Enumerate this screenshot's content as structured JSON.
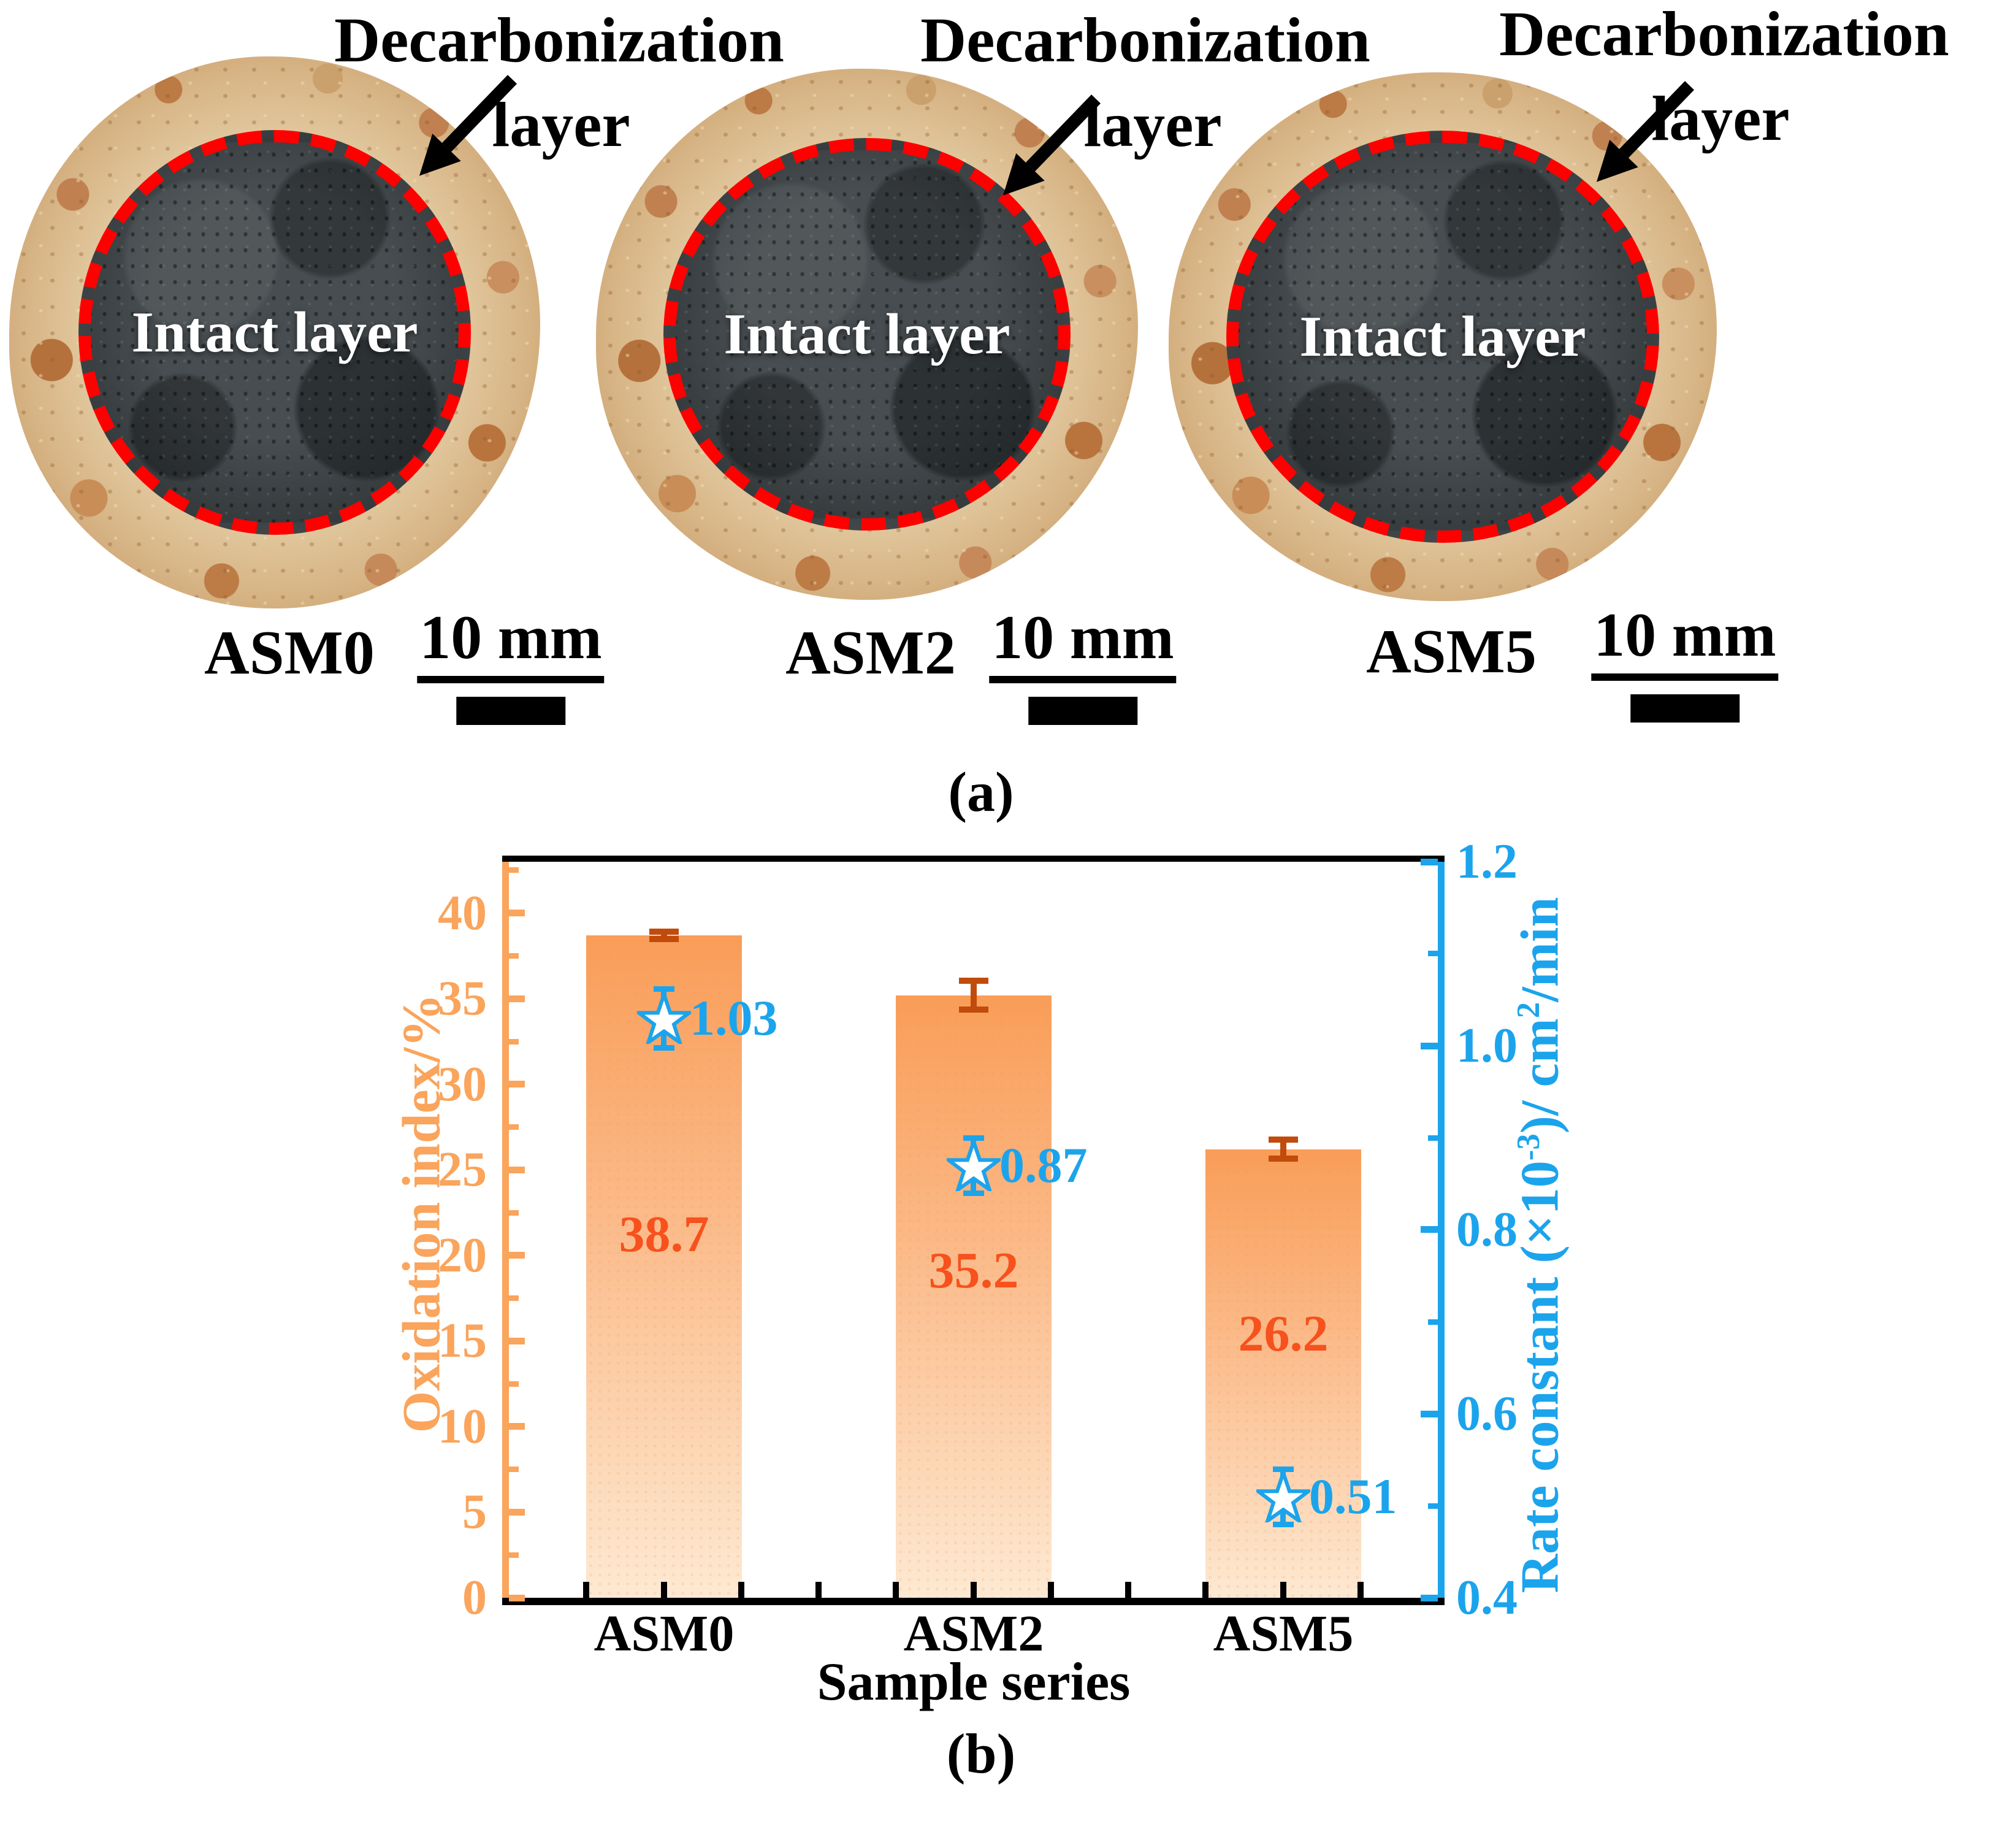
{
  "panel_a": {
    "label": "(a)",
    "samples": [
      {
        "name": "ASM0",
        "scale_label": "10 mm",
        "annotation_line1": "Decarbonization",
        "annotation_line2": "layer",
        "intact_label": "Intact layer"
      },
      {
        "name": "ASM2",
        "scale_label": "10 mm",
        "annotation_line1": "Decarbonization",
        "annotation_line2": "layer",
        "intact_label": "Intact layer"
      },
      {
        "name": "ASM5",
        "scale_label": "10 mm",
        "annotation_line1": "Decarbonization",
        "annotation_line2": "layer",
        "intact_label": "Intact layer"
      }
    ]
  },
  "panel_b": {
    "label": "(b)"
  },
  "chart_data": {
    "type": "bar",
    "categories": [
      "ASM0",
      "ASM2",
      "ASM5"
    ],
    "series": [
      {
        "name": "Oxidation index",
        "axis": "left",
        "marker": "bar",
        "values": [
          38.7,
          35.2,
          26.2
        ],
        "errors": [
          0.2,
          0.85,
          0.55
        ],
        "labels": [
          "38.7",
          "35.2",
          "26.2"
        ]
      },
      {
        "name": "Rate constant",
        "axis": "right",
        "marker": "star",
        "values": [
          1.03,
          0.87,
          0.51
        ],
        "errors": [
          0.032,
          0.03,
          0.03
        ],
        "labels": [
          "1.03",
          "0.87",
          "0.51"
        ]
      }
    ],
    "xlabel": "Sample series",
    "ylabel_left": "Oxidation index/%",
    "ylabel_right": "Rate constant (×10⁻³)/ cm²/min",
    "ylabel_right_parts": [
      "Rate constant (×10",
      "-3",
      ")/ cm",
      "2",
      "/min"
    ],
    "ylim_left": [
      0,
      43
    ],
    "ylim_right": [
      0.4,
      1.2
    ],
    "left_ticks_major": [
      "0",
      "5",
      "10",
      "15",
      "20",
      "25",
      "30",
      "35",
      "40"
    ],
    "left_ticks_minor_step": 2.5,
    "right_ticks_major": [
      "0.4",
      "0.6",
      "0.8",
      "1.0",
      "1.2"
    ],
    "right_ticks_minor": [
      0.5,
      0.7,
      0.9,
      1.1
    ],
    "grid": false,
    "legend": false
  },
  "colors": {
    "orange": "#FAA45C",
    "blue": "#1BA4EC",
    "rust": "#C14B0B",
    "bar_label": "#F7511D",
    "bar_top": "#F99D58",
    "bar_bottom": "#FDE9D2",
    "red_dash": "#FF0000"
  }
}
